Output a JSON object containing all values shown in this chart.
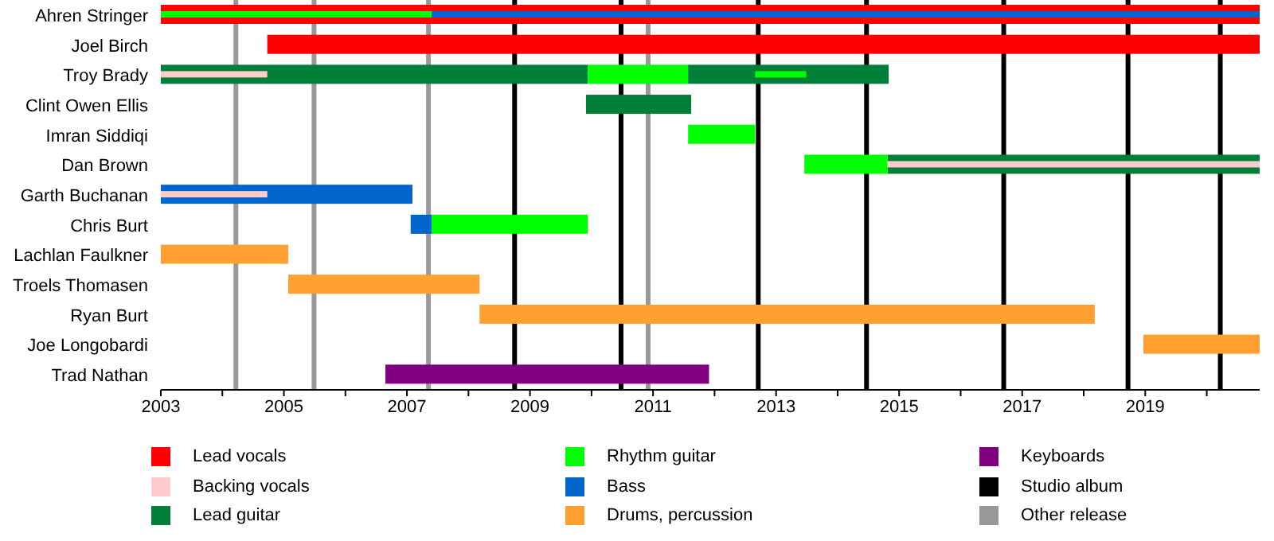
{
  "chart_data": {
    "type": "bar",
    "orientation": "horizontal",
    "legend": "bottom",
    "categories": [
      "Ahren Stringer",
      "Joel Birch",
      "Troy Brady",
      "Clint Owen Ellis",
      "Imran Siddiqi",
      "Dan Brown",
      "Garth Buchanan",
      "Chris Burt",
      "Lachlan Faulkner",
      "Troels Thomasen",
      "Ryan Burt",
      "Joe Longobardi",
      "Trad Nathan"
    ],
    "xlim": [
      2003,
      2020.86
    ],
    "xticks": [
      2003,
      {
        "value": 2004,
        "label": null
      },
      2005,
      {
        "value": 2006,
        "label": null
      },
      2007,
      {
        "value": 2008,
        "label": null
      },
      2009,
      {
        "value": 2010,
        "label": null
      },
      2011,
      {
        "value": 2012,
        "label": null
      },
      2013,
      {
        "value": 2014,
        "label": null
      },
      2015,
      {
        "value": 2016,
        "label": null
      },
      2017,
      {
        "value": 2018,
        "label": null
      },
      2019,
      {
        "value": 2020,
        "label": null
      }
    ],
    "series": [
      {
        "name": "Lead vocals",
        "color": "#ff0000",
        "base": [
          2003,
          2004.73,
          null,
          null,
          null,
          null,
          null,
          null,
          null,
          null,
          null,
          null,
          null
        ],
        "values": [
          17.86,
          16.13,
          null,
          null,
          null,
          null,
          null,
          null,
          null,
          null,
          null,
          null,
          null
        ]
      },
      {
        "name": "Backing vocals",
        "color": "#ffcccc",
        "base": [
          null,
          null,
          2003,
          null,
          null,
          2014.81,
          2003,
          null,
          null,
          null,
          null,
          null,
          null
        ],
        "values": [
          null,
          null,
          1.73,
          null,
          null,
          6.05,
          1.73,
          null,
          null,
          null,
          null,
          null,
          null
        ]
      },
      {
        "name": "Lead guitar",
        "color": "#007f3a",
        "base": [
          null,
          null,
          2003,
          2009.91,
          null,
          2014.81,
          null,
          null,
          null,
          null,
          null,
          null,
          null
        ],
        "values": [
          null,
          null,
          6.94,
          1.71,
          null,
          6.05,
          null,
          null,
          null,
          null,
          null,
          null,
          null
        ]
      },
      {
        "name": "Rhythm guitar",
        "color": "#00ff00",
        "base": [
          2003,
          null,
          2009.94,
          null,
          2011.57,
          2013.46,
          null,
          2007.4,
          null,
          null,
          null,
          null,
          null
        ],
        "values": [
          4.4,
          null,
          1.63,
          null,
          1.09,
          1.35,
          null,
          2.54,
          null,
          null,
          null,
          null,
          null
        ]
      },
      {
        "name": "Bass",
        "color": "#0066cc",
        "base": [
          2007.4,
          null,
          null,
          null,
          null,
          null,
          2003,
          2007.06,
          null,
          null,
          null,
          null,
          null
        ],
        "values": [
          13.46,
          null,
          null,
          null,
          null,
          null,
          4.09,
          0.34,
          null,
          null,
          null,
          null,
          null
        ]
      },
      {
        "name": "Drums, percussion",
        "color": "#ffa030",
        "base": [
          null,
          null,
          null,
          null,
          null,
          null,
          null,
          null,
          2003,
          2005.07,
          2008.18,
          2018.97,
          null
        ],
        "values": [
          null,
          null,
          null,
          null,
          null,
          null,
          null,
          null,
          2.07,
          3.11,
          10.0,
          1.89,
          null
        ]
      },
      {
        "name": "Keyboards",
        "color": "#800080",
        "base": [
          null,
          null,
          null,
          null,
          null,
          null,
          null,
          null,
          null,
          null,
          null,
          null,
          2006.65
        ],
        "values": [
          null,
          null,
          null,
          null,
          null,
          null,
          null,
          null,
          null,
          null,
          null,
          null,
          5.26
        ]
      },
      {
        "color": "#007f3a",
        "base": [
          null,
          null,
          2011.57,
          null,
          null,
          null,
          null,
          null,
          null,
          null,
          null,
          null,
          null
        ],
        "values": [
          null,
          null,
          3.26,
          null,
          null,
          null,
          null,
          null,
          null,
          null,
          null,
          null,
          null
        ]
      },
      {
        "color": "#00ff00",
        "base": [
          null,
          null,
          2012.66,
          null,
          null,
          null,
          null,
          null,
          null,
          null,
          null,
          null,
          null
        ],
        "values": [
          null,
          null,
          0.83,
          null,
          null,
          null,
          null,
          null,
          null,
          null,
          null,
          null,
          null
        ]
      }
    ],
    "ref_lines": [
      {
        "axis": "x",
        "value": 2008.75,
        "label": "Studio album",
        "color": "#000000"
      },
      {
        "axis": "x",
        "value": 2010.48,
        "color": "#000000"
      },
      {
        "axis": "x",
        "value": 2012.71,
        "color": "#000000"
      },
      {
        "axis": "x",
        "value": 2014.47,
        "color": "#000000"
      },
      {
        "axis": "x",
        "value": 2016.7,
        "color": "#000000"
      },
      {
        "axis": "x",
        "value": 2018.72,
        "color": "#000000"
      },
      {
        "axis": "x",
        "value": 2020.22,
        "color": "#000000"
      },
      {
        "axis": "x",
        "value": 2004.22,
        "label": "Other release",
        "color": "#999999"
      },
      {
        "axis": "x",
        "value": 2005.49,
        "color": "#999999"
      },
      {
        "axis": "x",
        "value": 2007.35,
        "color": "#999999"
      },
      {
        "axis": "x",
        "value": 2010.92,
        "color": "#999999"
      }
    ]
  }
}
